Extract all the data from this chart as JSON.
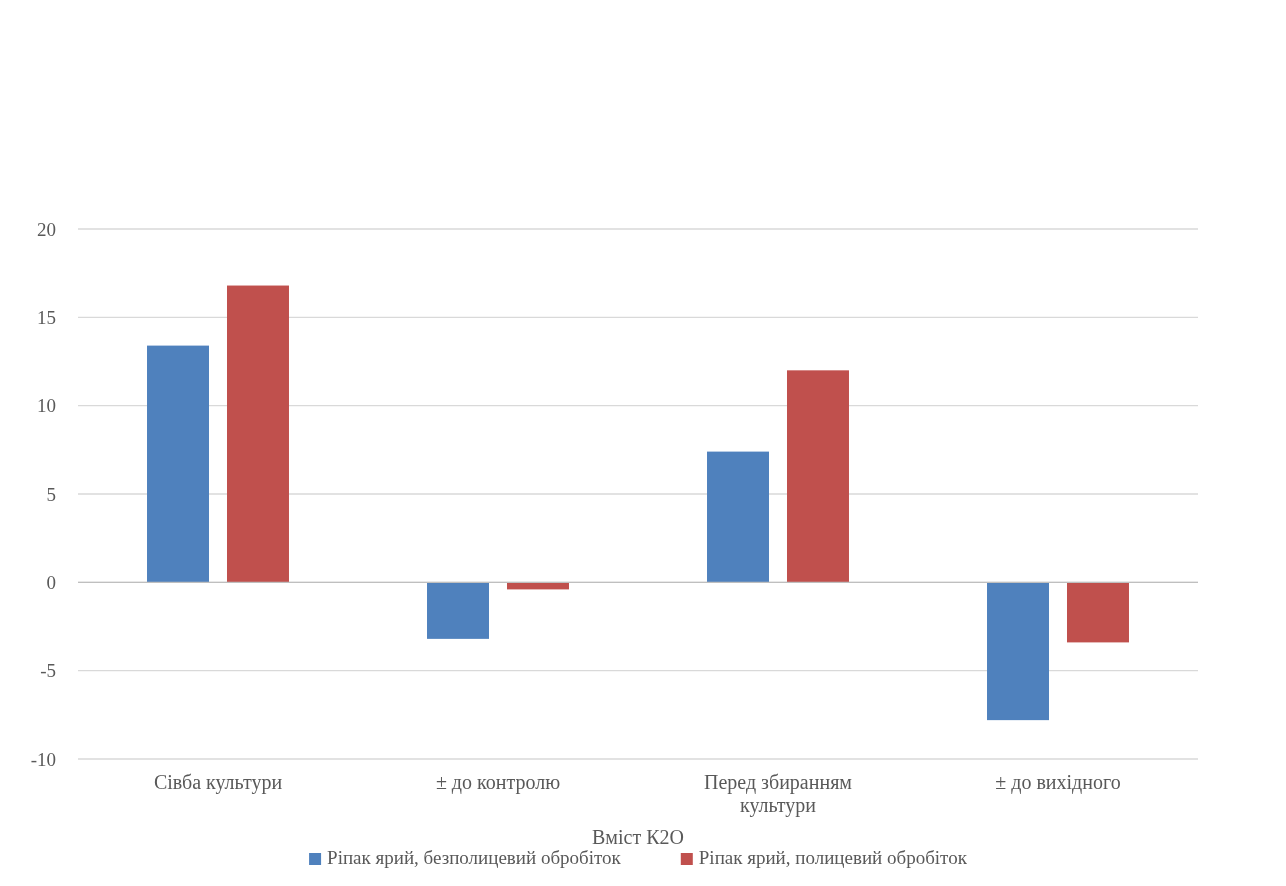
{
  "chart_data": {
    "type": "bar",
    "xlabel": "Вміст К2О",
    "categories": [
      "Сівба культури",
      "± до контролю",
      "Перед збиранням культури",
      "± до вихідного"
    ],
    "series": [
      {
        "name": "Ріпак ярий, безполицевий обробіток",
        "color": "#4f81bd",
        "values": [
          13.4,
          -3.2,
          7.4,
          -7.8
        ]
      },
      {
        "name": "Ріпак ярий, полицевий обробіток",
        "color": "#c0504d",
        "values": [
          16.8,
          -0.4,
          12.0,
          -3.4
        ]
      }
    ],
    "ylim": [
      -10,
      20
    ],
    "yticks": [
      -10,
      -5,
      0,
      5,
      10,
      15,
      20
    ],
    "grid": "y",
    "legend": "bottom"
  }
}
